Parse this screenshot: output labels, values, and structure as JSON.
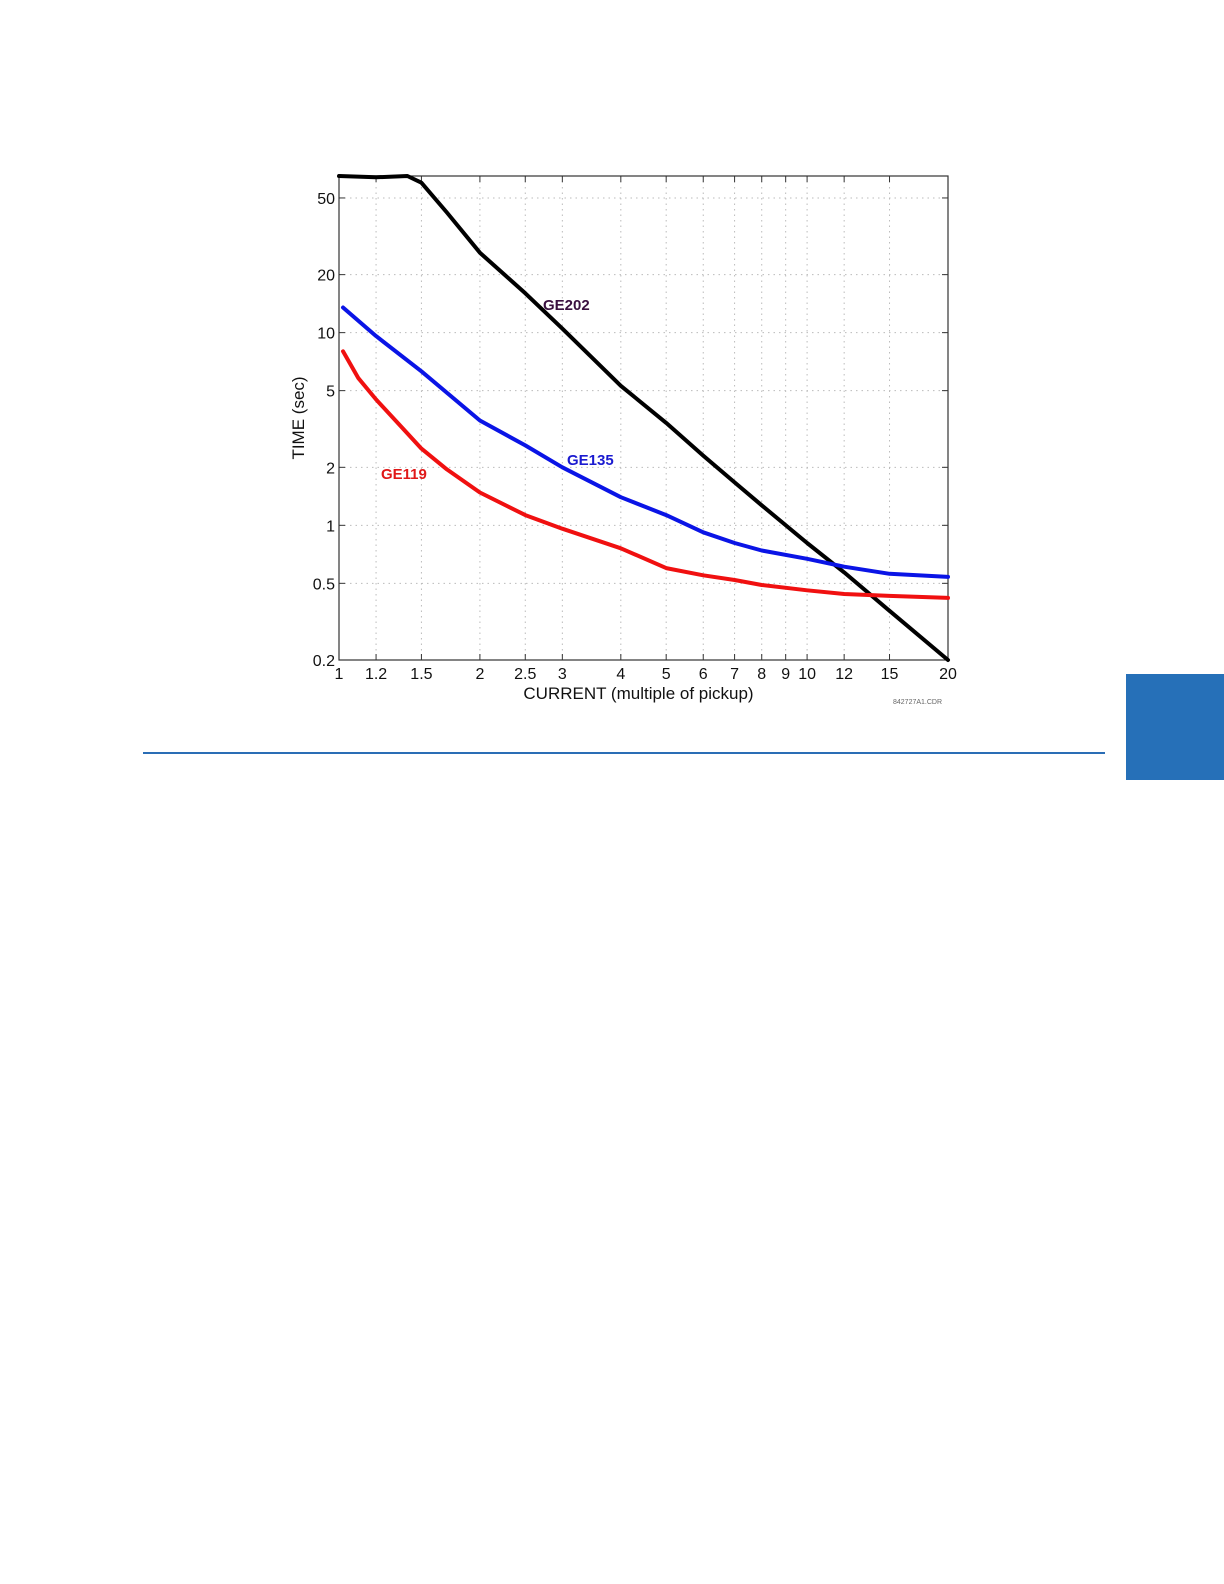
{
  "chart_data": {
    "type": "line",
    "xlabel": "CURRENT (multiple of pickup)",
    "ylabel": "TIME (sec)",
    "xscale": "log",
    "yscale": "log",
    "xlim": [
      1,
      20
    ],
    "ylim": [
      0.2,
      65
    ],
    "grid": true,
    "xticks": [
      1,
      1.2,
      1.5,
      2,
      2.5,
      3,
      4,
      5,
      6,
      7,
      8,
      9,
      10,
      12,
      15,
      20
    ],
    "yticks": [
      0.2,
      0.5,
      1,
      2,
      5,
      10,
      20,
      50
    ],
    "series": [
      {
        "name": "GE202",
        "color": "#000000",
        "label_color": "#3a1040",
        "x": [
          1.0,
          1.2,
          1.4,
          1.5,
          1.7,
          2,
          2.5,
          3,
          4,
          5,
          6,
          7,
          8,
          10,
          12,
          15,
          20
        ],
        "y": [
          65,
          64,
          65,
          60,
          42,
          26,
          16,
          10.5,
          5.3,
          3.4,
          2.3,
          1.67,
          1.27,
          0.81,
          0.57,
          0.36,
          0.2
        ]
      },
      {
        "name": "GE135",
        "color": "#0a14e6",
        "label_color": "#1a1ad0",
        "x": [
          1.02,
          1.2,
          1.5,
          2,
          2.5,
          3,
          4,
          5,
          6,
          7,
          8,
          10,
          12,
          15,
          20
        ],
        "y": [
          13.5,
          9.6,
          6.3,
          3.5,
          2.6,
          2.0,
          1.4,
          1.13,
          0.92,
          0.81,
          0.74,
          0.67,
          0.61,
          0.56,
          0.54
        ]
      },
      {
        "name": "GE119",
        "color": "#f01010",
        "label_color": "#e01818",
        "x": [
          1.02,
          1.1,
          1.2,
          1.35,
          1.5,
          1.7,
          2,
          2.5,
          3,
          4,
          5,
          6,
          7,
          8,
          10,
          12,
          15,
          20
        ],
        "y": [
          8,
          5.8,
          4.5,
          3.3,
          2.5,
          1.95,
          1.48,
          1.13,
          0.96,
          0.76,
          0.6,
          0.55,
          0.52,
          0.49,
          0.46,
          0.44,
          0.43,
          0.42
        ]
      }
    ]
  },
  "figure_code": "842727A1.CDR",
  "colors": {
    "accent": "#2670b8"
  }
}
